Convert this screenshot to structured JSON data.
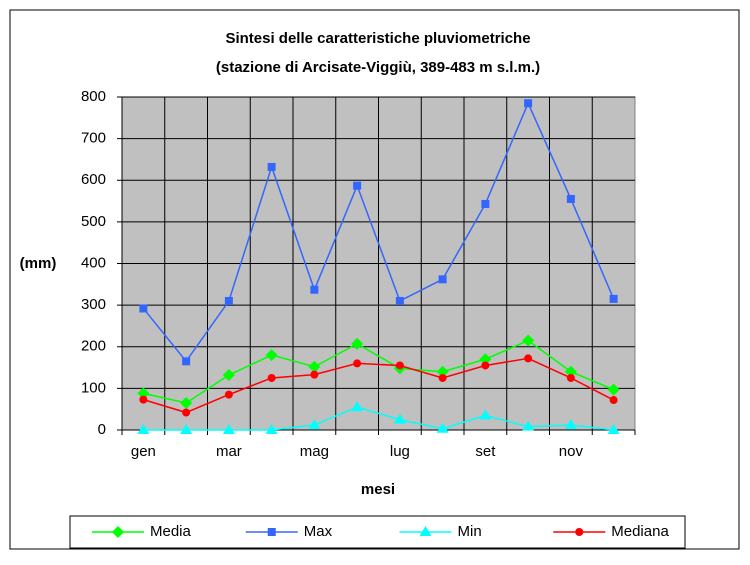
{
  "chart_data": {
    "type": "line",
    "title": "Sintesi delle caratteristiche pluviometriche",
    "subtitle": "(stazione di Arcisate-Viggiù, 389-483 m s.l.m.)",
    "ylabel": "(mm)",
    "xlabel": "mesi",
    "categories": [
      "gen",
      null,
      "mar",
      null,
      "mag",
      null,
      "lug",
      null,
      "set",
      null,
      "nov",
      null
    ],
    "series": [
      {
        "name": "Media",
        "color": "#00ff00",
        "marker": "diamond",
        "values": [
          88,
          65,
          132,
          180,
          152,
          207,
          148,
          140,
          170,
          215,
          140,
          97
        ]
      },
      {
        "name": "Max",
        "color": "#3366ff",
        "marker": "square",
        "values": [
          292,
          165,
          310,
          632,
          337,
          587,
          310,
          362,
          543,
          785,
          555,
          315
        ]
      },
      {
        "name": "Min",
        "color": "#00ffff",
        "marker": "triangle",
        "values": [
          0,
          0,
          0,
          0,
          12,
          55,
          25,
          3,
          35,
          8,
          12,
          0
        ]
      },
      {
        "name": "Mediana",
        "color": "#ff0000",
        "marker": "circle",
        "values": [
          73,
          42,
          85,
          125,
          133,
          160,
          155,
          125,
          155,
          172,
          125,
          72
        ]
      }
    ],
    "ylim": [
      0,
      800
    ],
    "yticks": [
      0,
      100,
      200,
      300,
      400,
      500,
      600,
      700,
      800
    ],
    "grid": true,
    "legend": "bottom",
    "plot_background": "#c0c0c0"
  }
}
